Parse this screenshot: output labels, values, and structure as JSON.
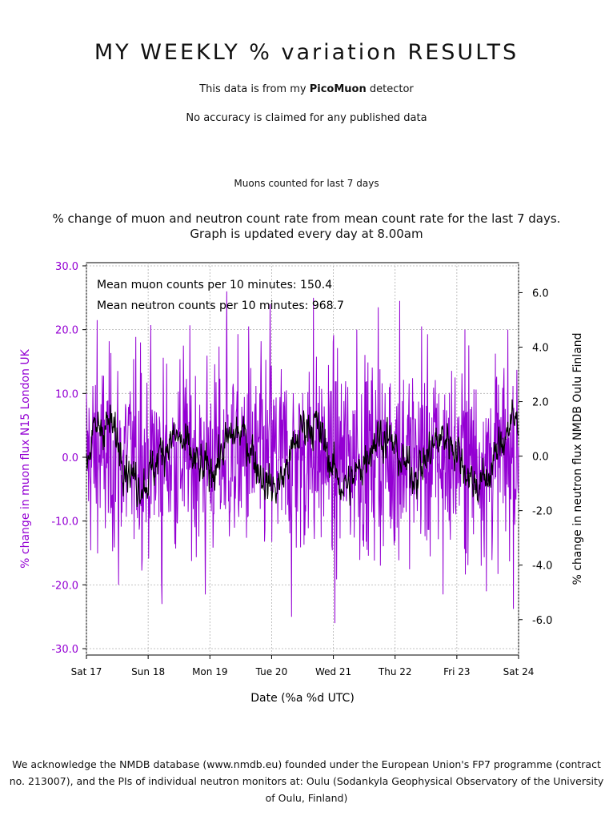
{
  "header": {
    "title": "MY WEEKLY % variation RESULTS",
    "line1_prefix": "This data is from my ",
    "line1_bold": "PicoMuon",
    "line1_suffix": " detector",
    "line2": "No accuracy is claimed for any published data",
    "section_label": "Muons counted for last 7 days"
  },
  "chart_title_line1": "% change of muon and neutron count rate from mean count rate for the last 7 days.",
  "chart_title_line2": "Graph is updated every day at 8.00am",
  "footer_text": "We acknowledge the NMDB database (www.nmdb.eu) founded under the European Union's FP7 programme (contract no. 213007), and the PIs of individual neutron monitors at: Oulu (Sodankyla Geophysical Observatory of the University of Oulu, Finland)",
  "colors": {
    "muon": "#9400d3",
    "neutron": "#000000",
    "axis": "#000000"
  },
  "chart_data": {
    "type": "line",
    "xlabel": "Date (%a %d UTC)",
    "ylabel_left": "% change in muon flux N15 London UK",
    "ylabel_right": "% change in neutron flux NMDB Oulu Finland",
    "annotations": [
      "Mean muon counts per 10 minutes: 150.4",
      "Mean neutron counts per 10 minutes: 968.7"
    ],
    "x_ticks": [
      "Sat 17",
      "Sun 18",
      "Mon 19",
      "Tue 20",
      "Wed 21",
      "Thu 22",
      "Fri 23",
      "Sat 24"
    ],
    "y_left_lim": [
      -31,
      30.5
    ],
    "y_left_ticks": [
      "30.0",
      "20.0",
      "10.0",
      "0.0",
      "-10.0",
      "-20.0",
      "-30.0"
    ],
    "y_left_tick_values": [
      30,
      20,
      10,
      0,
      -10,
      -20,
      -30
    ],
    "y_right_lim": [
      -7.3,
      7.1
    ],
    "y_right_ticks": [
      "6.0",
      "4.0",
      "2.0",
      "0.0",
      "-2.0",
      "-4.0",
      "-6.0"
    ],
    "y_right_tick_values": [
      6,
      4,
      2,
      0,
      -2,
      -4,
      -6
    ],
    "grid": true,
    "x_days": 7,
    "samples_per_day": 144,
    "series": [
      {
        "axis": "left",
        "approx_std": 7.5,
        "peak_values": [
          21.5,
          -20.0,
          18.0,
          -23.0,
          17.5,
          -21.5,
          26.0,
          20.5,
          24.0,
          -25.0,
          25.0,
          -26.0,
          20.0,
          23.5,
          24.5,
          20.5,
          -21.5,
          20.0,
          -21.0,
          20.0
        ]
      },
      {
        "axis": "right",
        "approx_std": 0.75,
        "approx_range": [
          -2.5,
          2.5
        ]
      }
    ]
  }
}
